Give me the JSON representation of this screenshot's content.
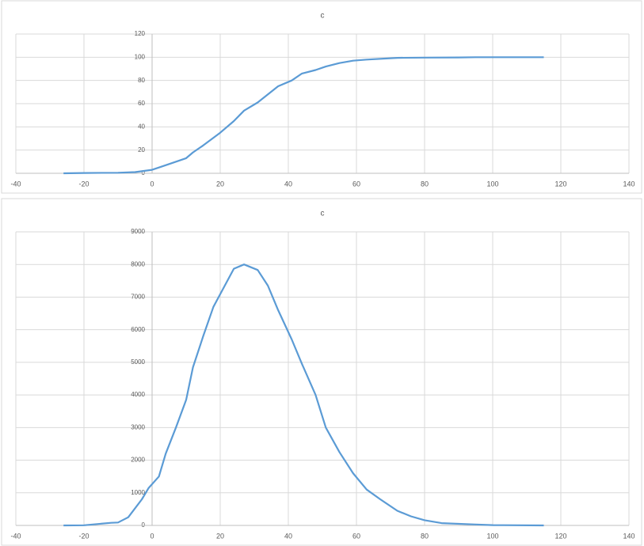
{
  "chart_data": [
    {
      "type": "line",
      "title": "c",
      "color": "#5b9bd5",
      "grid": true,
      "x": [
        -26,
        -20,
        -10,
        -5,
        0,
        2,
        5,
        10,
        12,
        15,
        20,
        24,
        27,
        31,
        34,
        37,
        41,
        44,
        48,
        51,
        55,
        59,
        63,
        72,
        80,
        90,
        95,
        115
      ],
      "values": [
        0,
        0.3,
        0.5,
        1,
        3,
        5,
        8,
        13,
        18,
        24,
        35,
        45,
        54,
        61,
        68,
        75,
        80,
        86,
        89,
        92,
        95,
        97,
        98,
        99.5,
        99.7,
        99.8,
        100,
        100
      ],
      "xlim": [
        -40,
        140
      ],
      "xticks": [
        -40,
        -20,
        0,
        20,
        40,
        60,
        80,
        100,
        120,
        140
      ],
      "ylim": [
        0,
        120
      ],
      "yticks": [
        0,
        20,
        40,
        60,
        80,
        100,
        120
      ]
    },
    {
      "type": "line",
      "title": "c",
      "color": "#5b9bd5",
      "grid": true,
      "x": [
        -26,
        -20,
        -12,
        -10,
        -7,
        -3,
        -1,
        2,
        4,
        7,
        10,
        12,
        15,
        18,
        24,
        27,
        31,
        34,
        37,
        41,
        44,
        48,
        51,
        55,
        59,
        63,
        67,
        72,
        76,
        80,
        85,
        95,
        100,
        115
      ],
      "values": [
        0,
        5,
        80,
        90,
        250,
        800,
        1150,
        1500,
        2200,
        3000,
        3850,
        4850,
        5800,
        6700,
        7870,
        8000,
        7830,
        7350,
        6600,
        5700,
        4950,
        4000,
        3000,
        2250,
        1600,
        1100,
        800,
        450,
        280,
        160,
        70,
        30,
        10,
        0
      ],
      "xlim": [
        -40,
        140
      ],
      "xticks": [
        -40,
        -20,
        0,
        20,
        40,
        60,
        80,
        100,
        120,
        140
      ],
      "ylim": [
        0,
        9000
      ],
      "yticks": [
        0,
        1000,
        2000,
        3000,
        4000,
        5000,
        6000,
        7000,
        8000,
        9000
      ]
    }
  ]
}
